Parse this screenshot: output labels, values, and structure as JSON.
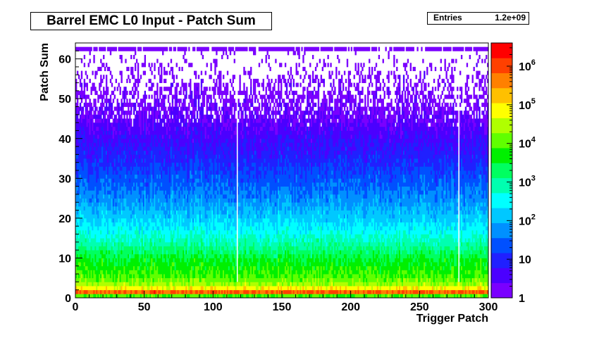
{
  "chart_data": {
    "type": "heatmap",
    "title": "Barrel EMC L0 Input - Patch Sum",
    "xlabel": "Trigger Patch",
    "ylabel": "Patch Sum",
    "xlim": [
      0,
      300
    ],
    "ylim": [
      0,
      64
    ],
    "x_ticks": [
      0,
      50,
      100,
      150,
      200,
      250,
      300
    ],
    "y_ticks": [
      0,
      10,
      20,
      30,
      40,
      50,
      60
    ],
    "z_scale": "log",
    "zlim": [
      1,
      4000000
    ],
    "z_ticks": [
      {
        "value": 1,
        "label": "1"
      },
      {
        "value": 10,
        "label": "10"
      },
      {
        "value": 100,
        "base": "10",
        "exp": "2"
      },
      {
        "value": 1000,
        "base": "10",
        "exp": "3"
      },
      {
        "value": 10000,
        "base": "10",
        "exp": "4"
      },
      {
        "value": 100000,
        "base": "10",
        "exp": "5"
      },
      {
        "value": 1000000,
        "base": "10",
        "exp": "6"
      }
    ],
    "x_bins": 300,
    "y_bins": 64,
    "profile_log10": [
      [
        0,
        1.5
      ],
      [
        1,
        6.4
      ],
      [
        2,
        5.3
      ],
      [
        3,
        4.5
      ],
      [
        4,
        4.2
      ],
      [
        5,
        4.0
      ],
      [
        6,
        3.9
      ],
      [
        8,
        3.7
      ],
      [
        10,
        3.5
      ],
      [
        14,
        2.9
      ],
      [
        18,
        2.4
      ],
      [
        22,
        2.0
      ],
      [
        26,
        1.65
      ],
      [
        30,
        1.35
      ],
      [
        34,
        1.05
      ],
      [
        38,
        0.8
      ],
      [
        42,
        0.55
      ],
      [
        46,
        0.35
      ],
      [
        50,
        0.2
      ],
      [
        55,
        0.08
      ],
      [
        62,
        0.0
      ]
    ],
    "overflow_row": 62,
    "stats": {
      "entries_label": "Entries",
      "entries_value": "1.2e+09"
    },
    "palette": [
      "#7a00ff",
      "#4b00ff",
      "#2020ff",
      "#0050ff",
      "#0090ff",
      "#00c8ff",
      "#00ffff",
      "#00ffb0",
      "#00ff60",
      "#00f000",
      "#60ff00",
      "#b0ff00",
      "#ffff00",
      "#ffc000",
      "#ff8000",
      "#ff4000",
      "#ff0000"
    ]
  }
}
